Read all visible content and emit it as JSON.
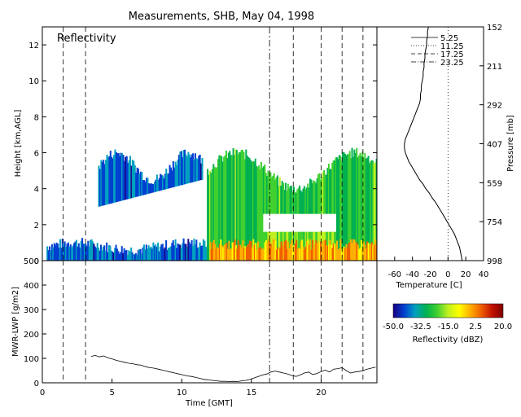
{
  "title": "Measurements, SHB, May 04, 1998",
  "chart_data": [
    {
      "id": "reflectivity",
      "type": "heatmap",
      "panel_label": "Reflectivity",
      "xlabel": "",
      "ylabel": "Height [km,AGL]",
      "xlim": [
        0,
        24
      ],
      "ylim": [
        0,
        13
      ],
      "yticks": [
        0,
        2,
        4,
        6,
        8,
        10,
        12
      ],
      "colorbar": {
        "label": "Reflectivity (dBZ)",
        "range": [
          -50.0,
          20.0
        ],
        "ticks": [
          "-50.0",
          "-32.5",
          "-15.0",
          "2.5",
          "20.0"
        ],
        "colors": [
          "#1a0080",
          "#0040d0",
          "#00a0c0",
          "#00b050",
          "#40d030",
          "#c0f020",
          "#ffff00",
          "#ffb000",
          "#f06000",
          "#c01000",
          "#800000"
        ]
      },
      "echo_regions": [
        {
          "name": "low-level layer",
          "x": [
            0.3,
            12.0
          ],
          "top": [
            0.6,
            1.0
          ],
          "dbz": -40
        },
        {
          "name": "thin cloud",
          "x": [
            4.0,
            11.5
          ],
          "top": [
            4.5,
            6.0
          ],
          "base": [
            3.0,
            4.5
          ],
          "dbz": -40
        },
        {
          "name": "deep cloud",
          "x": [
            11.8,
            24.0
          ],
          "top": [
            4.0,
            6.0
          ],
          "base": [
            0,
            0
          ],
          "dbz": -25
        },
        {
          "name": "bright band",
          "x": [
            12.0,
            24.0
          ],
          "top": [
            0.9,
            0.9
          ],
          "base": [
            0,
            0
          ],
          "dbz": 0
        }
      ],
      "event_lines_dashed": [
        1.5,
        3.1,
        18.0,
        20.0,
        21.5,
        23.0
      ],
      "event_lines_dashdot": [
        16.3
      ],
      "grid": false
    },
    {
      "id": "temperature",
      "type": "line",
      "xlabel": "Temperature [C]",
      "ylabel": "Pressure [mb]",
      "xlim": [
        -80,
        40
      ],
      "xticks": [
        -60,
        -40,
        -20,
        0,
        20,
        40
      ],
      "height_km": [
        0,
        13
      ],
      "pressure_ticks": [
        "152",
        "211",
        "292",
        "407",
        "559",
        "754",
        "998"
      ],
      "legend": [
        "5.25",
        "11.25",
        "17.25",
        "23.25"
      ],
      "legend_position": "top-right",
      "zero_reference": 0,
      "series": [
        {
          "name": "5.25",
          "temperature_c": [
            16,
            15,
            14,
            13,
            11,
            9,
            7,
            4,
            1,
            -2,
            -5,
            -8,
            -11,
            -14,
            -18,
            -21,
            -25,
            -28,
            -32,
            -35,
            -38,
            -41,
            -44,
            -46,
            -48,
            -49,
            -49,
            -48,
            -46,
            -44,
            -42,
            -40,
            -38,
            -36,
            -34,
            -32,
            -31,
            -31,
            -30,
            -30,
            -29,
            -28,
            -28,
            -27,
            -27,
            -26,
            -26,
            -25,
            -24,
            -24,
            -23,
            -23,
            -22
          ],
          "height_km": [
            0,
            0.25,
            0.5,
            0.75,
            1,
            1.25,
            1.5,
            1.75,
            2,
            2.25,
            2.5,
            2.75,
            3,
            3.25,
            3.5,
            3.75,
            4,
            4.25,
            4.5,
            4.75,
            5,
            5.25,
            5.5,
            5.75,
            6,
            6.25,
            6.5,
            6.75,
            7,
            7.25,
            7.5,
            7.75,
            8,
            8.25,
            8.5,
            8.75,
            9,
            9.25,
            9.5,
            9.75,
            10,
            10.25,
            10.5,
            10.75,
            11,
            11.25,
            11.5,
            11.75,
            12,
            12.25,
            12.5,
            12.75,
            13
          ]
        }
      ]
    },
    {
      "id": "lwp",
      "type": "line",
      "xlabel": "Time [GMT]",
      "ylabel": "MWR-LWP [g/m2]",
      "xlim": [
        0,
        24
      ],
      "ylim": [
        0,
        500
      ],
      "xticks": [
        0,
        5,
        10,
        15,
        20
      ],
      "yticks": [
        0,
        100,
        200,
        300,
        400,
        500
      ],
      "series": [
        {
          "name": "",
          "x": [
            3.5,
            3.8,
            4.1,
            4.4,
            4.7,
            5.0,
            5.3,
            5.6,
            5.9,
            6.2,
            6.5,
            6.8,
            7.1,
            7.4,
            7.7,
            8.0,
            8.3,
            8.6,
            8.9,
            9.2,
            9.5,
            9.8,
            10.1,
            10.4,
            10.7,
            11.0,
            11.3,
            11.6,
            11.9,
            12.2,
            12.5,
            12.8,
            13.1,
            13.4,
            13.7,
            14.0,
            14.3,
            14.6,
            14.9,
            15.2,
            15.5,
            15.8,
            16.1,
            16.4,
            16.7,
            17.0,
            17.3,
            17.6,
            17.9,
            18.2,
            18.5,
            18.8,
            19.1,
            19.4,
            19.7,
            20.0,
            20.3,
            20.6,
            20.9,
            21.2,
            21.5,
            21.8,
            22.1,
            22.4,
            22.7,
            23.0,
            23.3,
            23.6,
            23.9
          ],
          "y": [
            108,
            112,
            106,
            110,
            102,
            98,
            92,
            88,
            84,
            80,
            78,
            74,
            72,
            66,
            62,
            60,
            56,
            52,
            48,
            44,
            40,
            36,
            32,
            28,
            26,
            22,
            18,
            14,
            12,
            10,
            8,
            6,
            6,
            5,
            6,
            5,
            8,
            10,
            14,
            20,
            26,
            32,
            36,
            44,
            48,
            44,
            40,
            36,
            30,
            26,
            32,
            40,
            44,
            34,
            38,
            46,
            52,
            44,
            56,
            58,
            62,
            50,
            40,
            44,
            46,
            50,
            56,
            60,
            64
          ]
        }
      ],
      "event_lines_dashed": [
        1.5,
        3.1,
        18.0,
        20.0,
        21.5,
        23.0
      ],
      "event_lines_dashdot": [
        16.3
      ]
    }
  ]
}
